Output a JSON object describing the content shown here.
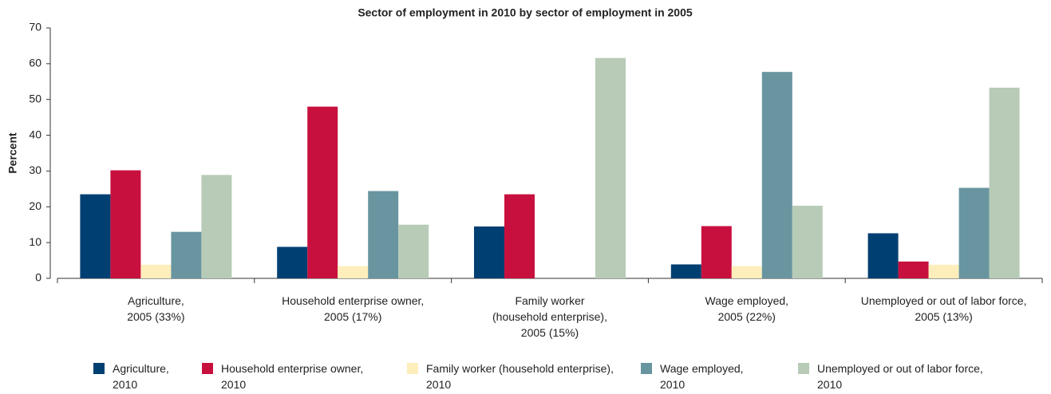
{
  "chart_data": {
    "type": "bar",
    "title": "Sector of employment in 2010 by sector of employment in 2005",
    "y_label": "Percent",
    "categories": [
      "Agriculture,\n2005 (33%)",
      "Household enterprise owner,\n2005 (17%)",
      "Family worker\n(household enterprise),\n2005 (15%)",
      "Wage employed,\n2005 (22%)",
      "Unemployed or out of labor force,\n2005 (13%)"
    ],
    "series": [
      {
        "name": "Agriculture,\n2010",
        "color": "#003f72",
        "values": [
          23.5,
          8.8,
          14.5,
          3.9,
          12.6
        ]
      },
      {
        "name": "Household enterprise owner,\n2010",
        "color": "#c8103e",
        "values": [
          30.2,
          48,
          23.5,
          14.6,
          4.7
        ]
      },
      {
        "name": "Family worker (household enterprise),\n2010",
        "color": "#fdeebb",
        "values": [
          3.8,
          3.4,
          0,
          3.4,
          3.8
        ]
      },
      {
        "name": "Wage employed,\n2010",
        "color": "#6895a0",
        "values": [
          13,
          24.4,
          0,
          57.7,
          25.3
        ]
      },
      {
        "name": "Unemployed or out of labor force,\n2010",
        "color": "#b7cbb7",
        "values": [
          28.9,
          15,
          61.6,
          20.3,
          53.3
        ]
      }
    ],
    "ylim": [
      0,
      70
    ],
    "yticks": [
      0,
      10,
      20,
      30,
      40,
      50,
      60,
      70
    ],
    "grid": false,
    "legend": "bottom"
  }
}
